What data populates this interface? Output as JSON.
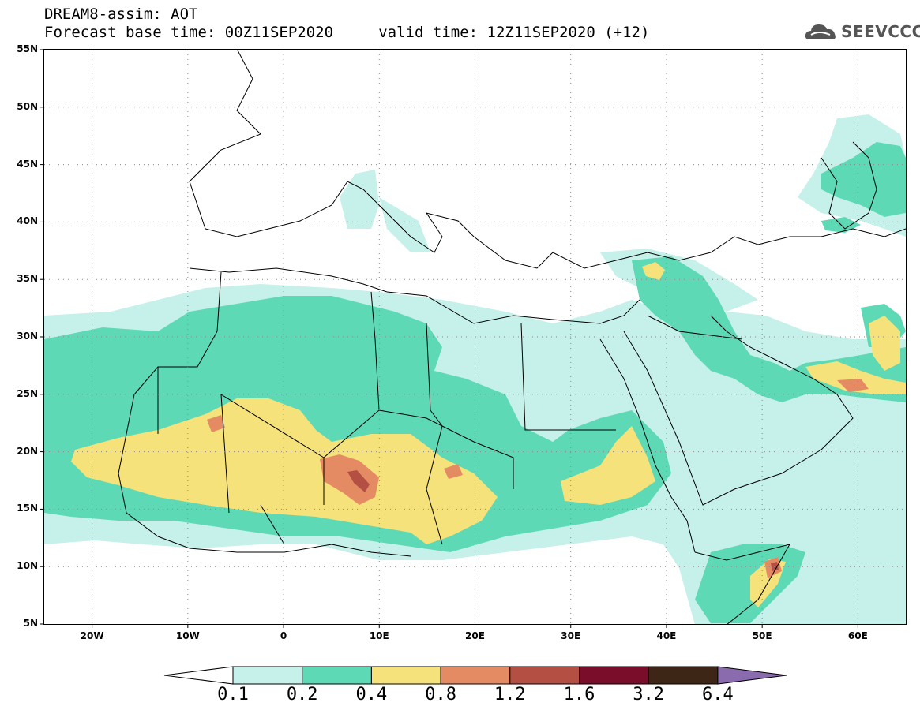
{
  "title": {
    "line1": "DREAM8-assim: AOT",
    "line2": "Forecast base time: 00Z11SEP2020     valid time: 12Z11SEP2020 (+12)"
  },
  "logo": {
    "text": "SEEVCCC",
    "icon": "cloud-logo-icon"
  },
  "map": {
    "lat_labels": [
      "55N",
      "50N",
      "45N",
      "40N",
      "35N",
      "30N",
      "25N",
      "20N",
      "15N",
      "10N",
      "5N"
    ],
    "lon_labels": [
      "20W",
      "10W",
      "0",
      "10E",
      "20E",
      "30E",
      "40E",
      "50E",
      "60E"
    ],
    "lat_range": [
      5,
      55
    ],
    "lon_range": [
      -25,
      65
    ],
    "grid": true
  },
  "colorbar": {
    "labels": [
      "0.1",
      "0.2",
      "0.4",
      "0.8",
      "1.2",
      "1.6",
      "3.2",
      "6.4"
    ],
    "colors": [
      "#c6f0ea",
      "#5ed9b6",
      "#f5e27a",
      "#e48b64",
      "#b44f44",
      "#7a0e2a",
      "#3e2616",
      "#8a6cae"
    ]
  }
}
